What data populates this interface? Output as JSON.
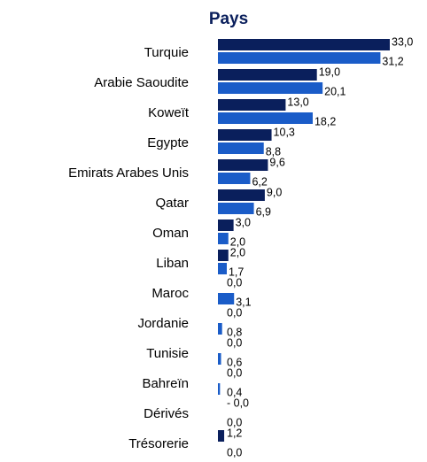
{
  "chart_data": {
    "type": "bar",
    "orientation": "horizontal",
    "title": "Pays",
    "categories": [
      "Turquie",
      "Arabie Saoudite",
      "Koweït",
      "Egypte",
      "Emirats Arabes Unis",
      "Qatar",
      "Oman",
      "Liban",
      "Maroc",
      "Jordanie",
      "Tunisie",
      "Bahreïn",
      "Dérivés",
      "Trésorerie"
    ],
    "series": [
      {
        "color": "#0a1f5c",
        "values": [
          33.0,
          19.0,
          13.0,
          10.3,
          9.6,
          9.0,
          3.0,
          2.0,
          0.0,
          0.0,
          0.0,
          0.0,
          -0.0,
          1.2
        ],
        "value_labels": [
          "33,0",
          "19,0",
          "13,0",
          "10,3",
          "9,6",
          "9,0",
          "3,0",
          "2,0",
          "0,0",
          "0,0",
          "0,0",
          "0,0",
          "-  0,0",
          "1,2"
        ]
      },
      {
        "color": "#1a5cc8",
        "values": [
          31.2,
          20.1,
          18.2,
          8.8,
          6.2,
          6.9,
          2.0,
          1.7,
          3.1,
          0.8,
          0.6,
          0.4,
          0.0,
          0.0
        ],
        "value_labels": [
          "31,2",
          "20,1",
          "18,2",
          "8,8",
          "6,2",
          "6,9",
          "2,0",
          "1,7",
          "3,1",
          "0,8",
          "0,6",
          "0,4",
          "0,0",
          "0,0"
        ]
      }
    ]
  }
}
